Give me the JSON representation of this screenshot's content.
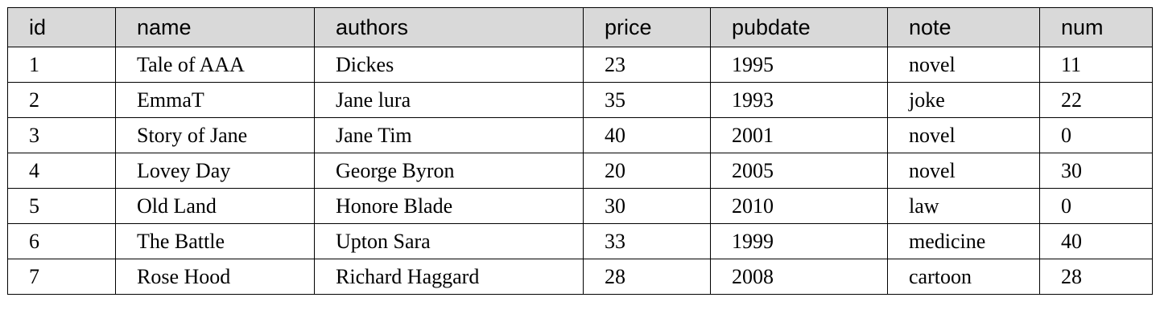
{
  "table": {
    "columns": [
      "id",
      "name",
      "authors",
      "price",
      "pubdate",
      "note",
      "num"
    ],
    "rows": [
      [
        "1",
        "Tale of AAA",
        "Dickes",
        "23",
        "1995",
        "novel",
        "11"
      ],
      [
        "2",
        "EmmaT",
        "Jane lura",
        "35",
        "1993",
        "joke",
        "22"
      ],
      [
        "3",
        "Story of Jane",
        "Jane Tim",
        "40",
        "2001",
        "novel",
        "0"
      ],
      [
        "4",
        "Lovey Day",
        "George Byron",
        "20",
        "2005",
        "novel",
        "30"
      ],
      [
        "5",
        "Old Land",
        "Honore Blade",
        "30",
        "2010",
        "law",
        "0"
      ],
      [
        "6",
        "The Battle",
        "Upton Sara",
        "33",
        "1999",
        "medicine",
        "40"
      ],
      [
        "7",
        "Rose Hood",
        "Richard Haggard",
        "28",
        "2008",
        "cartoon",
        "28"
      ]
    ]
  }
}
